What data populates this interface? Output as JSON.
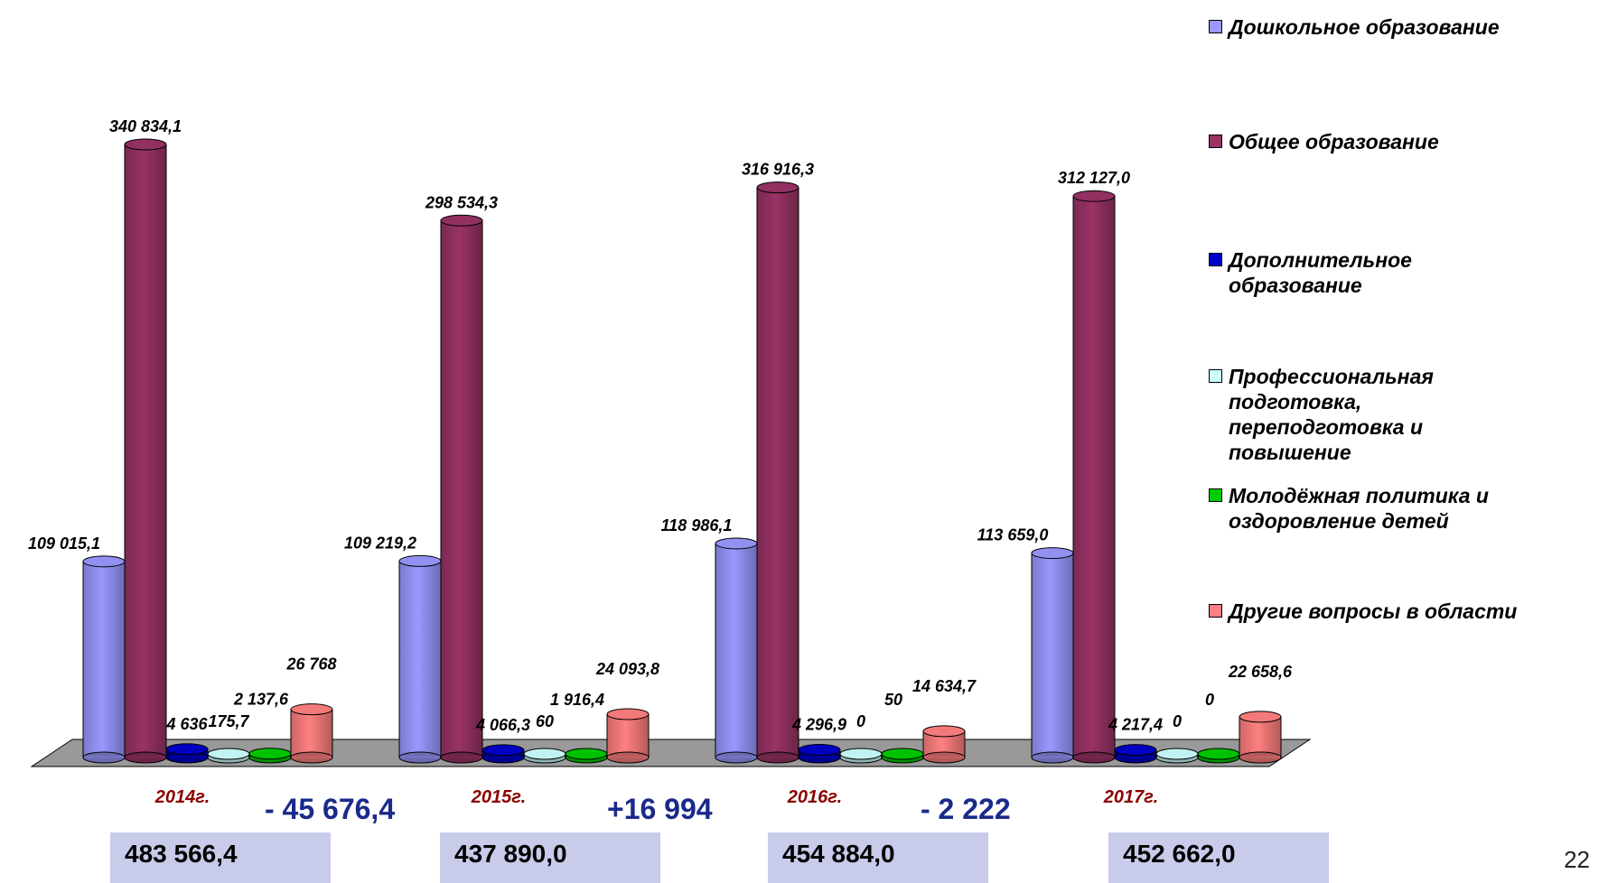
{
  "chart_data": {
    "type": "bar",
    "categories": [
      "2014г.",
      "2015г.",
      "2016г.",
      "2017г."
    ],
    "series": [
      {
        "name": "Дошкольное образование",
        "color": "#9999ff",
        "values": [
          109015.1,
          109219.2,
          118986.1,
          113659.0
        ],
        "labels": [
          "109 015,1",
          "109 219,2",
          "118 986,1",
          "113 659,0"
        ]
      },
      {
        "name": "Общее образование",
        "color": "#993366",
        "values": [
          340834.1,
          298534.3,
          316916.3,
          312127.0
        ],
        "labels": [
          "340 834,1",
          "298 534,3",
          "316 916,3",
          "312 127,0"
        ]
      },
      {
        "name": "Дополнительное образование",
        "color": "#0000cc",
        "values": [
          4636,
          4066.3,
          4296.9,
          4217.4
        ],
        "labels": [
          "4 636",
          "4 066,3",
          "4 296,9",
          "4 217,4"
        ]
      },
      {
        "name": "Профессиональная подготовка, переподготовка и повышение",
        "color": "#ccffff",
        "values": [
          175.7,
          60,
          0,
          0
        ],
        "labels": [
          "175,7",
          "60",
          "0",
          "0"
        ]
      },
      {
        "name": "Молодёжная политика и оздоровление детей",
        "color": "#00cc00",
        "values": [
          2137.6,
          1916.4,
          50,
          0
        ],
        "labels": [
          "2 137,6",
          "1 916,4",
          "50",
          "0"
        ]
      },
      {
        "name": "Другие вопросы в области",
        "color": "#ff8080",
        "values": [
          26768,
          24093.8,
          14634.7,
          22658.6
        ],
        "labels": [
          "26 768",
          "24 093,8",
          "14 634,7",
          "22 658,6"
        ]
      }
    ],
    "ylim": [
      0,
      340834.1
    ],
    "floor_color": "#999999",
    "legend_position": "right"
  },
  "differences": [
    "- 45 676,4",
    "+16 994",
    "- 2 222"
  ],
  "totals": [
    "483 566,4",
    "437 890,0",
    "454 884,0",
    "452 662,0"
  ],
  "page_number": "22"
}
